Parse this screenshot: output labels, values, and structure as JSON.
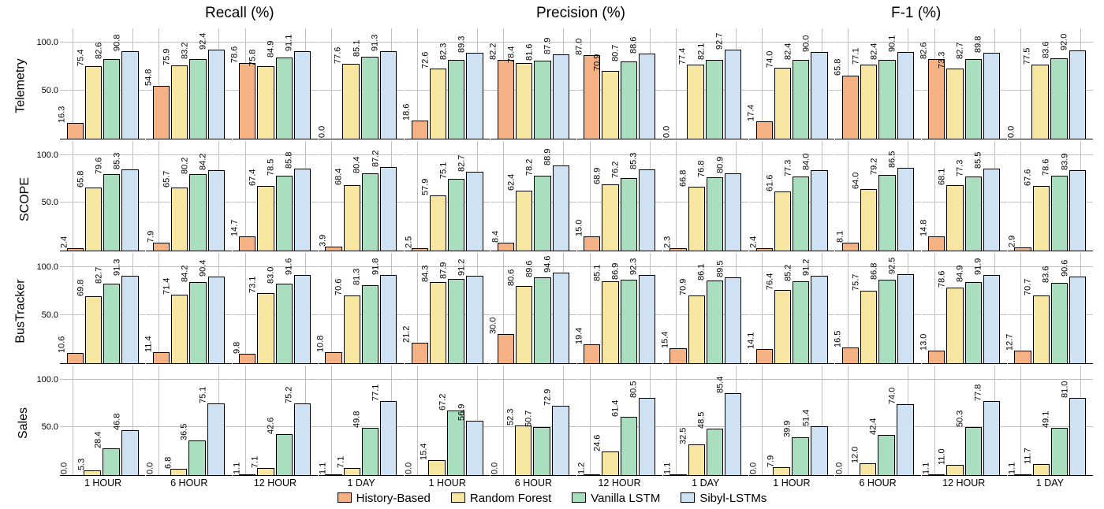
{
  "chart": {
    "type": "grouped-bar-small-multiples",
    "background_color": "#ffffff",
    "grid_color": "#c0c0c0",
    "axis_color": "#000000",
    "label_fontsize": 11,
    "title_fontsize": 19,
    "rowlabel_fontsize": 16,
    "xtick_fontsize": 12.5,
    "legend_fontsize": 15,
    "ylim": [
      0,
      115
    ],
    "yticks_labeled": [
      50.0,
      100.0
    ],
    "metrics": [
      "Recall (%)",
      "Precision (%)",
      "F-1 (%)"
    ],
    "datasets_rows": [
      "Telemetry",
      "SCOPE",
      "BusTracker",
      "Sales"
    ],
    "time_bins": [
      "1 HOUR",
      "6 HOUR",
      "12 HOUR",
      "1 DAY"
    ],
    "series": [
      {
        "name": "History-Based",
        "color": "#f4b183"
      },
      {
        "name": "Random Forest",
        "color": "#f6e6a2"
      },
      {
        "name": "Vanilla LSTM",
        "color": "#a9dfbf"
      },
      {
        "name": "Sibyl-LSTMs",
        "color": "#cfe2f3"
      }
    ],
    "data": {
      "Telemetry": {
        "Recall (%)": {
          "1 HOUR": [
            16.3,
            75.4,
            82.6,
            90.8
          ],
          "6 HOUR": [
            54.8,
            75.9,
            83.2,
            92.4
          ],
          "12 HOUR": [
            78.6,
            75.8,
            84.9,
            91.1
          ],
          "1 DAY": [
            0.0,
            77.6,
            85.1,
            91.3
          ]
        },
        "Precision (%)": {
          "1 HOUR": [
            18.6,
            72.6,
            82.3,
            89.3
          ],
          "6 HOUR": [
            82.2,
            78.4,
            81.6,
            87.9
          ],
          "12 HOUR": [
            87.0,
            70.9,
            80.7,
            88.6
          ],
          "1 DAY": [
            0.0,
            77.4,
            82.1,
            92.7
          ]
        },
        "F-1 (%)": {
          "1 HOUR": [
            17.4,
            74.0,
            82.4,
            90.0
          ],
          "6 HOUR": [
            65.8,
            77.1,
            82.4,
            90.1
          ],
          "12 HOUR": [
            82.6,
            73.3,
            82.7,
            89.8
          ],
          "1 DAY": [
            0.0,
            77.5,
            83.6,
            92.0
          ]
        }
      },
      "SCOPE": {
        "Recall (%)": {
          "1 HOUR": [
            2.4,
            65.8,
            79.6,
            85.3
          ],
          "6 HOUR": [
            7.9,
            65.7,
            80.2,
            84.2
          ],
          "12 HOUR": [
            14.7,
            67.4,
            78.5,
            85.8
          ],
          "1 DAY": [
            3.9,
            68.4,
            80.4,
            87.2
          ]
        },
        "Precision (%)": {
          "1 HOUR": [
            2.5,
            57.9,
            75.1,
            82.7
          ],
          "6 HOUR": [
            8.4,
            62.4,
            78.2,
            88.9
          ],
          "12 HOUR": [
            15.0,
            68.9,
            76.2,
            85.3
          ],
          "1 DAY": [
            2.3,
            66.8,
            76.8,
            80.9
          ]
        },
        "F-1 (%)": {
          "1 HOUR": [
            2.4,
            61.6,
            77.3,
            84.0
          ],
          "6 HOUR": [
            8.1,
            64.0,
            79.2,
            86.5
          ],
          "12 HOUR": [
            14.8,
            68.1,
            77.3,
            85.5
          ],
          "1 DAY": [
            2.9,
            67.6,
            78.6,
            83.9
          ]
        }
      },
      "BusTracker": {
        "Recall (%)": {
          "1 HOUR": [
            10.6,
            69.8,
            82.7,
            91.3
          ],
          "6 HOUR": [
            11.4,
            71.4,
            84.2,
            90.4
          ],
          "12 HOUR": [
            9.8,
            73.1,
            83.0,
            91.6
          ],
          "1 DAY": [
            10.8,
            70.6,
            81.3,
            91.8
          ]
        },
        "Precision (%)": {
          "1 HOUR": [
            21.2,
            84.3,
            87.9,
            91.2
          ],
          "6 HOUR": [
            30.0,
            80.6,
            89.6,
            94.6
          ],
          "12 HOUR": [
            19.4,
            85.1,
            86.9,
            92.3
          ],
          "1 DAY": [
            15.4,
            70.9,
            86.1,
            89.5
          ]
        },
        "F-1 (%)": {
          "1 HOUR": [
            14.1,
            76.4,
            85.2,
            91.2
          ],
          "6 HOUR": [
            16.5,
            75.7,
            86.8,
            92.5
          ],
          "12 HOUR": [
            13.0,
            78.6,
            84.9,
            91.9
          ],
          "1 DAY": [
            12.7,
            70.7,
            83.6,
            90.6
          ]
        }
      },
      "Sales": {
        "Recall (%)": {
          "1 HOUR": [
            0.0,
            5.3,
            28.4,
            46.8
          ],
          "6 HOUR": [
            0.0,
            6.8,
            36.5,
            75.1
          ],
          "12 HOUR": [
            1.1,
            7.1,
            42.6,
            75.2
          ],
          "1 DAY": [
            1.1,
            7.1,
            49.8,
            77.1
          ]
        },
        "Precision (%)": {
          "1 HOUR": [
            0.0,
            15.4,
            67.2,
            56.9
          ],
          "6 HOUR": [
            0.0,
            52.3,
            50.7,
            72.9
          ],
          "12 HOUR": [
            1.2,
            24.6,
            61.4,
            80.5
          ],
          "1 DAY": [
            1.1,
            32.5,
            48.5,
            85.4
          ]
        },
        "F-1 (%)": {
          "1 HOUR": [
            0.0,
            7.9,
            39.9,
            51.4
          ],
          "6 HOUR": [
            0.0,
            12.0,
            42.4,
            74.0
          ],
          "12 HOUR": [
            1.1,
            11.0,
            50.3,
            77.8
          ],
          "1 DAY": [
            1.1,
            11.7,
            49.1,
            81.0
          ]
        }
      }
    }
  }
}
